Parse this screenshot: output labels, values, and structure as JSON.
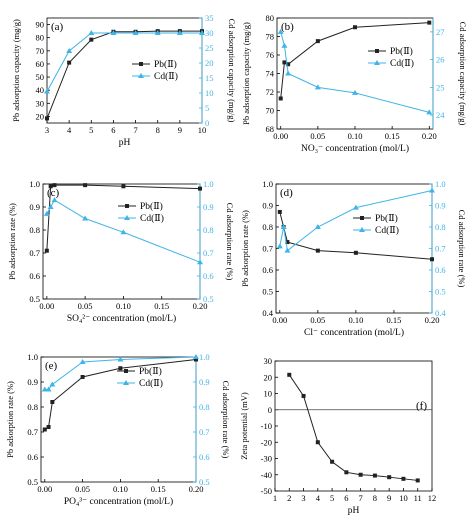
{
  "colors": {
    "pb": "#222222",
    "cd": "#3fb4e8",
    "axis": "#000000"
  },
  "chart_data": [
    {
      "id": "a",
      "type": "line",
      "panel_label": "(a)",
      "xlabel": "pH",
      "ylabel": "Pb adsorption capacity (mg/g)",
      "ylabel2": "Cd adsorption capacity (mg/g)",
      "xlim": [
        3,
        10
      ],
      "ylim": [
        15,
        95
      ],
      "ylim2": [
        0,
        35
      ],
      "xticks": [
        3,
        4,
        5,
        6,
        7,
        8,
        9,
        10
      ],
      "yticks": [
        20,
        30,
        40,
        50,
        60,
        70,
        80,
        90
      ],
      "yticks2": [
        0,
        5,
        10,
        15,
        20,
        25,
        30,
        35
      ],
      "legend_position": "center-right",
      "series": [
        {
          "name": "Pb(Ⅱ)",
          "axis": "left",
          "marker": "square",
          "x": [
            3,
            4,
            5,
            6,
            7,
            8,
            9,
            10
          ],
          "y": [
            18.5,
            61,
            78.5,
            84.5,
            84.5,
            85,
            85,
            85
          ]
        },
        {
          "name": "Cd(Ⅱ)",
          "axis": "right",
          "marker": "triangle",
          "x": [
            3,
            4,
            5,
            6,
            7,
            8,
            9,
            10
          ],
          "y": [
            10.5,
            24,
            30,
            30,
            30,
            30,
            30,
            30
          ]
        }
      ]
    },
    {
      "id": "b",
      "type": "line",
      "panel_label": "(b)",
      "xlabel": "NO₃⁻ concentration (mol/L)",
      "ylabel": "Pb adsorption capacity (mg/g)",
      "ylabel2": "Cd adsorption capacity (mg/g)",
      "xlim": [
        -0.005,
        0.205
      ],
      "ylim": [
        68,
        80
      ],
      "ylim2": [
        23.5,
        27.5
      ],
      "xticks": [
        0.0,
        0.05,
        0.1,
        0.15,
        0.2
      ],
      "yticks": [
        68,
        70,
        72,
        74,
        76,
        78,
        80
      ],
      "yticks2": [
        24,
        25,
        26,
        27
      ],
      "legend_position": "center-right",
      "series": [
        {
          "name": "Pb(Ⅱ)",
          "axis": "left",
          "marker": "square",
          "x": [
            0,
            0.005,
            0.01,
            0.05,
            0.1,
            0.2
          ],
          "y": [
            71.3,
            75.2,
            75.0,
            77.5,
            79.0,
            79.5
          ]
        },
        {
          "name": "Cd(Ⅱ)",
          "axis": "right",
          "marker": "triangle",
          "x": [
            0,
            0.005,
            0.01,
            0.05,
            0.1,
            0.2
          ],
          "y": [
            27.0,
            26.5,
            25.5,
            25.0,
            24.8,
            24.1
          ]
        }
      ]
    },
    {
      "id": "c",
      "type": "line",
      "panel_label": "(c)",
      "xlabel": "SO₄²⁻ concentration (mol/L)",
      "ylabel": "Pb adsorption rate (%)",
      "ylabel2": "Cd adsorption rate (%)",
      "xlim": [
        -0.005,
        0.2
      ],
      "ylim": [
        0.5,
        1.0
      ],
      "ylim2": [
        0.5,
        1.0
      ],
      "xticks": [
        0.0,
        0.05,
        0.1,
        0.15,
        0.2
      ],
      "yticks": [
        0.5,
        0.6,
        0.7,
        0.8,
        0.9,
        1.0
      ],
      "yticks2": [
        0.5,
        0.6,
        0.7,
        0.8,
        0.9,
        1.0
      ],
      "legend_position": "upper-right",
      "series": [
        {
          "name": "Pb(Ⅱ)",
          "axis": "left",
          "marker": "square",
          "x": [
            0,
            0.005,
            0.01,
            0.05,
            0.1,
            0.2
          ],
          "y": [
            0.71,
            0.99,
            0.995,
            0.995,
            0.99,
            0.98
          ]
        },
        {
          "name": "Cd(Ⅱ)",
          "axis": "right",
          "marker": "triangle",
          "x": [
            0,
            0.005,
            0.01,
            0.05,
            0.1,
            0.2
          ],
          "y": [
            0.87,
            0.9,
            0.93,
            0.85,
            0.79,
            0.66
          ]
        }
      ]
    },
    {
      "id": "d",
      "type": "line",
      "panel_label": "(d)",
      "xlabel": "Cl⁻ concentration (mol/L)",
      "ylabel": "Pb adsorption rate (%)",
      "ylabel2": "Cd adsorption rate (%)",
      "xlim": [
        -0.005,
        0.2
      ],
      "ylim": [
        0.4,
        1.0
      ],
      "ylim2": [
        0.4,
        1.0
      ],
      "xticks": [
        0.0,
        0.05,
        0.1,
        0.15,
        0.2
      ],
      "yticks": [
        0.4,
        0.5,
        0.6,
        0.7,
        0.8,
        0.9,
        1.0
      ],
      "yticks2": [
        0.4,
        0.5,
        0.6,
        0.7,
        0.8,
        0.9,
        1.0
      ],
      "legend_position": "upper-right",
      "series": [
        {
          "name": "Pb(Ⅱ)",
          "axis": "left",
          "marker": "square",
          "x": [
            0,
            0.005,
            0.01,
            0.05,
            0.1,
            0.2
          ],
          "y": [
            0.87,
            0.8,
            0.73,
            0.69,
            0.68,
            0.65
          ]
        },
        {
          "name": "Cd(Ⅱ)",
          "axis": "right",
          "marker": "triangle",
          "x": [
            0,
            0.005,
            0.01,
            0.05,
            0.1,
            0.2
          ],
          "y": [
            0.71,
            0.8,
            0.69,
            0.8,
            0.89,
            0.97
          ]
        }
      ]
    },
    {
      "id": "e",
      "type": "line",
      "panel_label": "(e)",
      "xlabel": "PO₄³⁻ concentration (mol/L)",
      "ylabel": "Pb adsorption rate (%)",
      "ylabel2": "Cd adsorption rate (%)",
      "xlim": [
        -0.005,
        0.2
      ],
      "ylim": [
        0.5,
        1.0
      ],
      "ylim2": [
        0.5,
        1.0
      ],
      "xticks": [
        0.0,
        0.05,
        0.1,
        0.15,
        0.2
      ],
      "yticks": [
        0.5,
        0.6,
        0.7,
        0.8,
        0.9,
        1.0
      ],
      "yticks2": [
        0.5,
        0.6,
        0.7,
        0.8,
        0.9,
        1.0
      ],
      "legend_position": "center-right",
      "series": [
        {
          "name": "Pb(Ⅱ)",
          "axis": "left",
          "marker": "square",
          "x": [
            0,
            0.005,
            0.01,
            0.05,
            0.1,
            0.2
          ],
          "y": [
            0.71,
            0.72,
            0.82,
            0.92,
            0.955,
            0.99
          ]
        },
        {
          "name": "Cd(Ⅱ)",
          "axis": "right",
          "marker": "triangle",
          "x": [
            0,
            0.005,
            0.01,
            0.05,
            0.1,
            0.2
          ],
          "y": [
            0.87,
            0.87,
            0.89,
            0.98,
            0.99,
            1.0
          ]
        }
      ]
    },
    {
      "id": "f",
      "type": "line",
      "panel_label": "(f)",
      "xlabel": "pH",
      "ylabel": "Zeta potential (mV)",
      "xlim": [
        1,
        12
      ],
      "ylim": [
        -50,
        30
      ],
      "xticks": [
        1,
        2,
        3,
        4,
        5,
        6,
        7,
        8,
        9,
        10,
        11,
        12
      ],
      "yticks": [
        -50,
        -40,
        -30,
        -20,
        -10,
        0,
        10,
        20,
        30
      ],
      "zero_line": true,
      "series": [
        {
          "axis": "left",
          "marker": "square",
          "x": [
            2,
            3,
            4,
            5,
            6,
            7,
            8,
            9,
            10,
            11
          ],
          "y": [
            21.5,
            8.5,
            -20,
            -32,
            -38.5,
            -40,
            -40.5,
            -41.5,
            -42.5,
            -43.5
          ]
        }
      ]
    }
  ]
}
